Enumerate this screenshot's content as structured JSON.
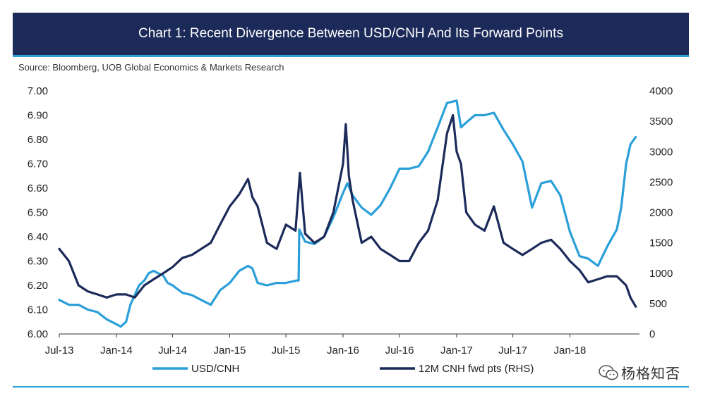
{
  "header": {
    "title": "Chart 1: Recent Divergence Between USD/CNH And Its Forward Points",
    "source": "Source: Bloomberg, UOB Global Economics & Markets Research"
  },
  "watermark": {
    "text": "杨格知否",
    "icon": "wechat-icon"
  },
  "colors": {
    "title_bg": "#1c2a5a",
    "accent": "#2e9fd8",
    "usdcnh": "#2a9fd8",
    "fwd": "#1c2a5a"
  },
  "chart_data": {
    "type": "line",
    "x_ticks": [
      "Jul-13",
      "Jan-14",
      "Jul-14",
      "Jan-15",
      "Jul-15",
      "Jan-16",
      "Jul-16",
      "Jan-17",
      "Jul-17",
      "Jan-18"
    ],
    "y_left_ticks": [
      "7.00",
      "6.90",
      "6.80",
      "6.70",
      "6.60",
      "6.50",
      "6.40",
      "6.30",
      "6.20",
      "6.10",
      "6.00"
    ],
    "y_right_ticks": [
      "4000",
      "3500",
      "3000",
      "2500",
      "2000",
      "1500",
      "1000",
      "500",
      "0"
    ],
    "ylim_left": [
      6.0,
      7.0
    ],
    "ylim_right": [
      0,
      4000
    ],
    "grid": false,
    "legend_position": "bottom",
    "series": [
      {
        "name": "USD/CNH",
        "axis": "left",
        "points": [
          [
            "2013-07-01",
            6.14
          ],
          [
            "2013-08-01",
            6.12
          ],
          [
            "2013-09-01",
            6.12
          ],
          [
            "2013-10-01",
            6.1
          ],
          [
            "2013-11-01",
            6.09
          ],
          [
            "2013-12-01",
            6.06
          ],
          [
            "2014-01-01",
            6.04
          ],
          [
            "2014-01-15",
            6.03
          ],
          [
            "2014-02-01",
            6.05
          ],
          [
            "2014-02-15",
            6.12
          ],
          [
            "2014-03-01",
            6.16
          ],
          [
            "2014-03-15",
            6.2
          ],
          [
            "2014-04-01",
            6.22
          ],
          [
            "2014-04-15",
            6.25
          ],
          [
            "2014-05-01",
            6.26
          ],
          [
            "2014-05-15",
            6.25
          ],
          [
            "2014-06-01",
            6.24
          ],
          [
            "2014-06-15",
            6.21
          ],
          [
            "2014-07-01",
            6.2
          ],
          [
            "2014-08-01",
            6.17
          ],
          [
            "2014-09-01",
            6.16
          ],
          [
            "2014-10-01",
            6.14
          ],
          [
            "2014-11-01",
            6.12
          ],
          [
            "2014-12-01",
            6.18
          ],
          [
            "2015-01-01",
            6.21
          ],
          [
            "2015-02-01",
            6.26
          ],
          [
            "2015-03-01",
            6.28
          ],
          [
            "2015-03-15",
            6.27
          ],
          [
            "2015-04-01",
            6.21
          ],
          [
            "2015-05-01",
            6.2
          ],
          [
            "2015-06-01",
            6.21
          ],
          [
            "2015-07-01",
            6.21
          ],
          [
            "2015-08-05",
            6.22
          ],
          [
            "2015-08-11",
            6.22
          ],
          [
            "2015-08-13",
            6.43
          ],
          [
            "2015-09-01",
            6.38
          ],
          [
            "2015-10-01",
            6.37
          ],
          [
            "2015-11-01",
            6.4
          ],
          [
            "2015-12-01",
            6.48
          ],
          [
            "2016-01-01",
            6.58
          ],
          [
            "2016-01-15",
            6.62
          ],
          [
            "2016-02-01",
            6.57
          ],
          [
            "2016-03-01",
            6.52
          ],
          [
            "2016-04-01",
            6.49
          ],
          [
            "2016-05-01",
            6.53
          ],
          [
            "2016-06-01",
            6.6
          ],
          [
            "2016-07-01",
            6.68
          ],
          [
            "2016-08-01",
            6.68
          ],
          [
            "2016-09-01",
            6.69
          ],
          [
            "2016-10-01",
            6.75
          ],
          [
            "2016-11-01",
            6.85
          ],
          [
            "2016-12-01",
            6.95
          ],
          [
            "2017-01-01",
            6.96
          ],
          [
            "2017-01-15",
            6.85
          ],
          [
            "2017-02-01",
            6.87
          ],
          [
            "2017-03-01",
            6.9
          ],
          [
            "2017-04-01",
            6.9
          ],
          [
            "2017-05-01",
            6.91
          ],
          [
            "2017-06-01",
            6.84
          ],
          [
            "2017-07-01",
            6.78
          ],
          [
            "2017-08-01",
            6.71
          ],
          [
            "2017-09-01",
            6.52
          ],
          [
            "2017-10-01",
            6.62
          ],
          [
            "2017-11-01",
            6.63
          ],
          [
            "2017-12-01",
            6.57
          ],
          [
            "2018-01-01",
            6.42
          ],
          [
            "2018-02-01",
            6.32
          ],
          [
            "2018-03-01",
            6.31
          ],
          [
            "2018-04-01",
            6.28
          ],
          [
            "2018-05-01",
            6.36
          ],
          [
            "2018-06-01",
            6.43
          ],
          [
            "2018-06-15",
            6.52
          ],
          [
            "2018-07-01",
            6.7
          ],
          [
            "2018-07-15",
            6.78
          ],
          [
            "2018-08-01",
            6.81
          ]
        ]
      },
      {
        "name": "12M CNH fwd pts (RHS)",
        "axis": "right",
        "points": [
          [
            "2013-07-01",
            1400
          ],
          [
            "2013-08-01",
            1200
          ],
          [
            "2013-09-01",
            800
          ],
          [
            "2013-10-01",
            700
          ],
          [
            "2013-11-01",
            650
          ],
          [
            "2013-12-01",
            600
          ],
          [
            "2014-01-01",
            650
          ],
          [
            "2014-02-01",
            650
          ],
          [
            "2014-03-01",
            600
          ],
          [
            "2014-04-01",
            800
          ],
          [
            "2014-05-01",
            900
          ],
          [
            "2014-06-01",
            1000
          ],
          [
            "2014-07-01",
            1100
          ],
          [
            "2014-08-01",
            1250
          ],
          [
            "2014-09-01",
            1300
          ],
          [
            "2014-10-01",
            1400
          ],
          [
            "2014-11-01",
            1500
          ],
          [
            "2014-12-01",
            1800
          ],
          [
            "2015-01-01",
            2100
          ],
          [
            "2015-02-01",
            2300
          ],
          [
            "2015-03-01",
            2550
          ],
          [
            "2015-03-15",
            2250
          ],
          [
            "2015-04-01",
            2100
          ],
          [
            "2015-05-01",
            1500
          ],
          [
            "2015-06-01",
            1400
          ],
          [
            "2015-07-01",
            1800
          ],
          [
            "2015-08-01",
            1700
          ],
          [
            "2015-08-15",
            2650
          ],
          [
            "2015-09-01",
            1650
          ],
          [
            "2015-10-01",
            1500
          ],
          [
            "2015-11-01",
            1600
          ],
          [
            "2015-12-01",
            2000
          ],
          [
            "2016-01-01",
            2800
          ],
          [
            "2016-01-10",
            3450
          ],
          [
            "2016-01-20",
            2600
          ],
          [
            "2016-02-01",
            2200
          ],
          [
            "2016-03-01",
            1500
          ],
          [
            "2016-04-01",
            1600
          ],
          [
            "2016-05-01",
            1400
          ],
          [
            "2016-06-01",
            1300
          ],
          [
            "2016-07-01",
            1200
          ],
          [
            "2016-08-01",
            1200
          ],
          [
            "2016-09-01",
            1500
          ],
          [
            "2016-10-01",
            1700
          ],
          [
            "2016-11-01",
            2200
          ],
          [
            "2016-12-01",
            3300
          ],
          [
            "2016-12-20",
            3600
          ],
          [
            "2017-01-01",
            3000
          ],
          [
            "2017-01-15",
            2800
          ],
          [
            "2017-02-01",
            2000
          ],
          [
            "2017-03-01",
            1800
          ],
          [
            "2017-04-01",
            1700
          ],
          [
            "2017-05-01",
            2100
          ],
          [
            "2017-06-01",
            1500
          ],
          [
            "2017-07-01",
            1400
          ],
          [
            "2017-08-01",
            1300
          ],
          [
            "2017-09-01",
            1400
          ],
          [
            "2017-10-01",
            1500
          ],
          [
            "2017-11-01",
            1550
          ],
          [
            "2017-12-01",
            1400
          ],
          [
            "2018-01-01",
            1200
          ],
          [
            "2018-02-01",
            1050
          ],
          [
            "2018-03-01",
            850
          ],
          [
            "2018-04-01",
            900
          ],
          [
            "2018-05-01",
            950
          ],
          [
            "2018-06-01",
            950
          ],
          [
            "2018-07-01",
            800
          ],
          [
            "2018-07-15",
            600
          ],
          [
            "2018-08-01",
            450
          ]
        ]
      }
    ]
  }
}
